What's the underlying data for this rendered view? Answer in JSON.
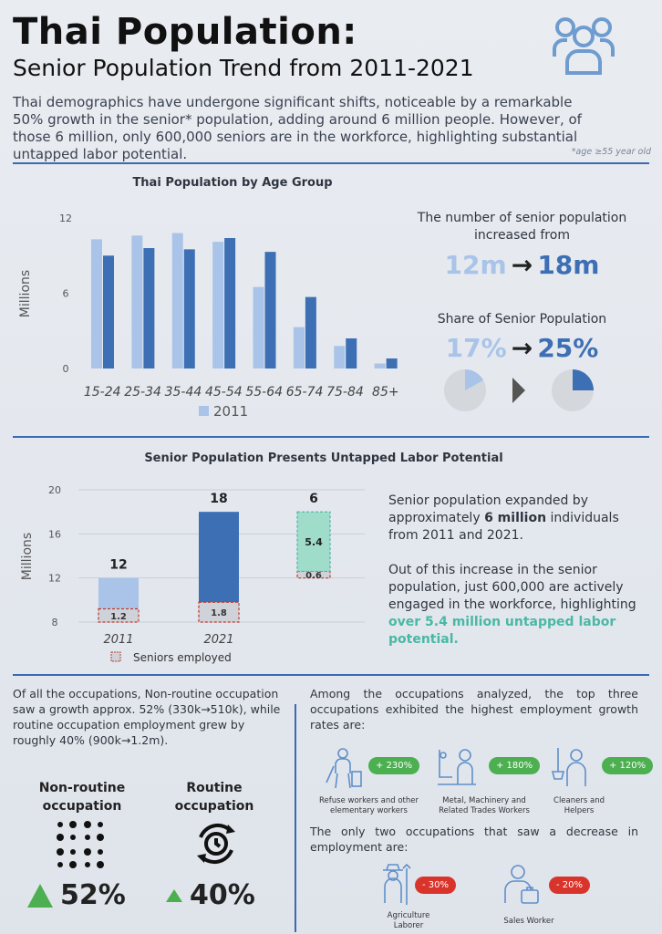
{
  "header": {
    "title": "Thai Population:",
    "subtitle": "Senior Population Trend from 2011-2021",
    "intro": "Thai demographics have undergone significant shifts, noticeable by a remarkable 50% growth in the senior* population, adding around 6 million people. However, of those 6 million, only 600,000 seniors are in the workforce, highlighting substantial untapped labor potential.",
    "footnote": "*age ≥55 year old"
  },
  "section1": {
    "title": "Thai Population by Age Group",
    "stat1_text": "The number of senior population increased from",
    "stat1_from": "12m",
    "stat1_to": "18m",
    "stat2_text": "Share of Senior Population",
    "stat2_from": "17%",
    "stat2_to": "25%",
    "arrow": "→"
  },
  "section2": {
    "title": "Senior Population Presents Untapped Labor Potential",
    "para1_a": "Senior population expanded by approximately ",
    "para1_b": "6 million",
    "para1_c": " individuals from 2011 and 2021.",
    "para2_a": "Out of this increase in the senior population, just 600,000 are actively engaged in the workforce, highlighting ",
    "para2_b": "over 5.4 million untapped labor potential."
  },
  "section3": {
    "left_text": "Of all the occupations, Non-routine occupation saw a growth approx. 52% (330k→510k), while routine occupation employment grew by roughly 40% (900k→1.2m).",
    "nonroutine_title": "Non-routine occupation",
    "nonroutine_pct": "52%",
    "routine_title": "Routine occupation",
    "routine_pct": "40%",
    "right_text1": "Among the occupations analyzed, the top three occupations exhibited the highest employment growth rates are:",
    "growth": [
      {
        "label": "Refuse workers and other elementary workers",
        "badge": "+ 230%"
      },
      {
        "label": "Metal, Machinery and Related Trades Workers",
        "badge": "+ 180%"
      },
      {
        "label": "Cleaners and Helpers",
        "badge": "+ 120%"
      }
    ],
    "right_text2": "The only two occupations that saw a decrease in employment are:",
    "decline": [
      {
        "label": "Agriculture Laborer",
        "badge": "- 30%"
      },
      {
        "label": "Sales Worker",
        "badge": "- 20%"
      }
    ]
  },
  "colors": {
    "light_blue": "#a9c4e8",
    "dark_blue": "#3d6fb5",
    "teal": "#49b8a5",
    "badge_green": "#4caf50",
    "badge_red": "#d9342b"
  },
  "chart_data": [
    {
      "type": "bar",
      "title": "Thai Population by Age Group",
      "ylabel": "Millions",
      "ylim": [
        0,
        12
      ],
      "yticks": [
        0,
        6,
        12
      ],
      "categories": [
        "15-24",
        "25-34",
        "35-44",
        "45-54",
        "55-64",
        "65-74",
        "75-84",
        "85+"
      ],
      "series": [
        {
          "name": "2011",
          "color": "#a9c4e8",
          "values": [
            10.3,
            10.6,
            10.8,
            10.1,
            6.5,
            3.3,
            1.8,
            0.4
          ]
        },
        {
          "values": [
            9.0,
            9.6,
            9.5,
            10.4,
            9.3,
            5.7,
            2.4,
            0.8
          ]
        }
      ],
      "legend": "bottom-center",
      "grid": false
    },
    {
      "type": "pie",
      "title": "Share of Senior Population",
      "slices": [
        {
          "year": "2011",
          "share": 17,
          "color": "#a9c4e8"
        },
        {
          "year": "2021",
          "share": 25,
          "color": "#3d6fb5"
        }
      ]
    },
    {
      "type": "bar",
      "title": "Senior Population Presents Untapped Labor Potential",
      "ylabel": "Millions",
      "ylim": [
        8,
        20
      ],
      "yticks": [
        8,
        12,
        16,
        20
      ],
      "categories": [
        "2011",
        "2021",
        ""
      ],
      "totals": [
        "12",
        "18",
        "6"
      ],
      "bars": [
        {
          "category": "2011",
          "total": 12,
          "employed": 1.2
        },
        {
          "category": "2021",
          "total": 18,
          "employed": 1.8
        },
        {
          "category": "",
          "increase": 6,
          "untapped": 5.4,
          "employed": 0.6
        }
      ],
      "employed_labels": [
        "1.2",
        "1.8",
        "0.6"
      ],
      "untapped_label": "5.4",
      "legend": "Seniors employed",
      "grid": true
    }
  ]
}
